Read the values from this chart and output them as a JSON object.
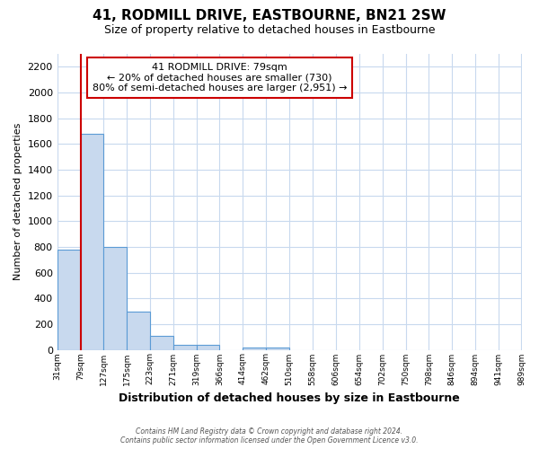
{
  "title": "41, RODMILL DRIVE, EASTBOURNE, BN21 2SW",
  "subtitle": "Size of property relative to detached houses in Eastbourne",
  "xlabel": "Distribution of detached houses by size in Eastbourne",
  "ylabel": "Number of detached properties",
  "bin_edges": [
    31,
    79,
    127,
    175,
    223,
    271,
    319,
    366,
    414,
    462,
    510,
    558,
    606,
    654,
    702,
    750,
    798,
    846,
    894,
    941,
    989
  ],
  "bin_labels": [
    "31sqm",
    "79sqm",
    "127sqm",
    "175sqm",
    "223sqm",
    "271sqm",
    "319sqm",
    "366sqm",
    "414sqm",
    "462sqm",
    "510sqm",
    "558sqm",
    "606sqm",
    "654sqm",
    "702sqm",
    "750sqm",
    "798sqm",
    "846sqm",
    "894sqm",
    "941sqm",
    "989sqm"
  ],
  "bar_heights": [
    780,
    1680,
    800,
    295,
    110,
    35,
    35,
    0,
    20,
    20,
    0,
    0,
    0,
    0,
    0,
    0,
    0,
    0,
    0,
    0
  ],
  "ylim": [
    0,
    2300
  ],
  "yticks": [
    0,
    200,
    400,
    600,
    800,
    1000,
    1200,
    1400,
    1600,
    1800,
    2000,
    2200
  ],
  "bar_color": "#c8d9ee",
  "bar_edge_color": "#5b9bd5",
  "grid_color": "#c8d9ee",
  "property_line_x": 79,
  "property_line_color": "#cc0000",
  "annotation_title": "41 RODMILL DRIVE: 79sqm",
  "annotation_line1": "← 20% of detached houses are smaller (730)",
  "annotation_line2": "80% of semi-detached houses are larger (2,951) →",
  "annotation_box_color": "#ffffff",
  "annotation_box_edge": "#cc0000",
  "footer_line1": "Contains HM Land Registry data © Crown copyright and database right 2024.",
  "footer_line2": "Contains public sector information licensed under the Open Government Licence v3.0.",
  "background_color": "#ffffff",
  "fig_width": 6.0,
  "fig_height": 5.0
}
